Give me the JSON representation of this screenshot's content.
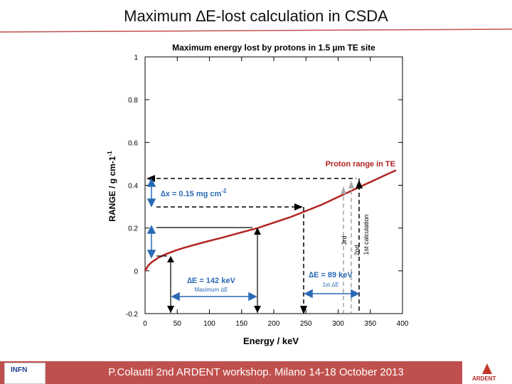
{
  "slide": {
    "title": "Maximum ∆E-lost calculation in CSDA",
    "footer": "P.Colautti 2nd ARDENT workshop. Milano 14-18 October 2013",
    "logo_left_text": "INFN",
    "logo_right_text": "ARDENT"
  },
  "chart_data": {
    "type": "line",
    "title": "Maximum energy lost by protons in 1.5 µm TE site",
    "xlabel": "Energy / keV",
    "ylabel": "RANGE / g cm-1",
    "xlim": [
      0,
      400
    ],
    "ylim": [
      -0.2,
      1
    ],
    "xticks": [
      "0",
      "50",
      "100",
      "150",
      "200",
      "250",
      "300",
      "350",
      "400"
    ],
    "yticks": [
      "-0.2",
      "0",
      "0.2",
      "0.4",
      "0.6",
      "0.8",
      "1"
    ],
    "grid": false,
    "series": [
      {
        "name": "Proton range in TE",
        "color": "#b22222",
        "x": [
          0,
          5,
          10,
          20,
          30,
          40,
          50,
          60,
          80,
          100,
          120,
          150,
          175,
          200,
          225,
          250,
          275,
          300,
          325,
          350,
          375,
          390
        ],
        "y": [
          0.0,
          0.025,
          0.04,
          0.06,
          0.075,
          0.087,
          0.098,
          0.107,
          0.124,
          0.14,
          0.155,
          0.18,
          0.2,
          0.225,
          0.25,
          0.28,
          0.31,
          0.345,
          0.38,
          0.415,
          0.45,
          0.47
        ]
      }
    ],
    "annotations": {
      "dx_label": "∆x = 0.15 mg cm",
      "dx_exp": "-2",
      "de1_label": "∆E = 142 keV",
      "de1_sub": "Maximum ∆E",
      "de2_label": "∆E = 89 keV",
      "de2_sub": "1st ∆E",
      "calc1": "1st calculation",
      "calc2": "2nd",
      "calc3": "3rd",
      "ylabel_exp": "-1"
    },
    "colors": {
      "curve": "#b22222",
      "blue_arrow": "#2a6ab5",
      "black": "#000000",
      "gray_arrow": "#aaaaaa"
    }
  }
}
